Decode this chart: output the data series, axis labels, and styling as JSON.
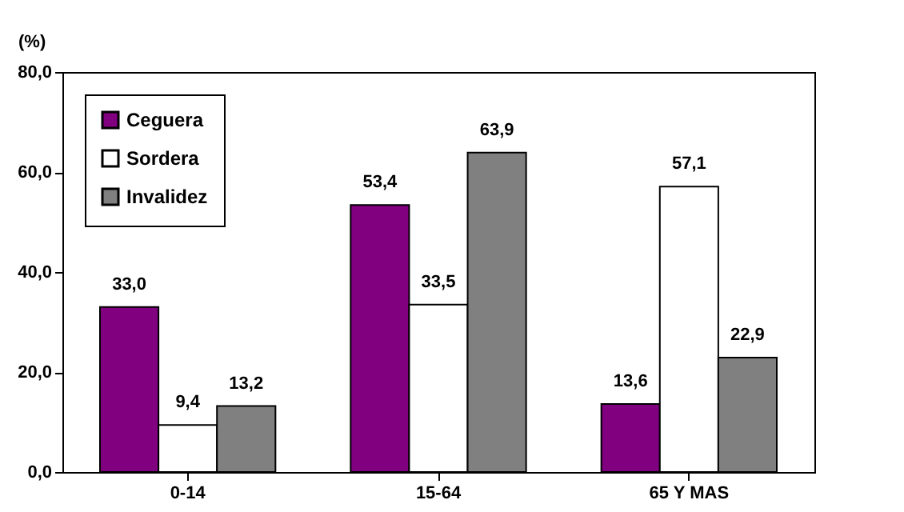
{
  "chart_data": {
    "type": "bar",
    "ylabel": "(%)",
    "categories": [
      "0-14",
      "15-64",
      "65 Y MAS"
    ],
    "series": [
      {
        "name": "Ceguera",
        "color": "#800080",
        "values": [
          33.0,
          53.4,
          13.6
        ],
        "value_labels": [
          "33,0",
          "53,4",
          "13,6"
        ]
      },
      {
        "name": "Sordera",
        "color": "#ffffff",
        "values": [
          9.4,
          33.5,
          57.1
        ],
        "value_labels": [
          "9,4",
          "33,5",
          "57,1"
        ]
      },
      {
        "name": "Invalidez",
        "color": "#808080",
        "values": [
          13.2,
          63.9,
          22.9
        ],
        "value_labels": [
          "13,2",
          "63,9",
          "22,9"
        ]
      }
    ],
    "ylim": [
      0,
      80
    ],
    "yticks": [
      {
        "value": 0,
        "label": "0,0"
      },
      {
        "value": 20,
        "label": "20,0"
      },
      {
        "value": 40,
        "label": "40,0"
      },
      {
        "value": 60,
        "label": "60,0"
      },
      {
        "value": 80,
        "label": "80,0"
      }
    ],
    "grid": false,
    "legend": "top left"
  }
}
